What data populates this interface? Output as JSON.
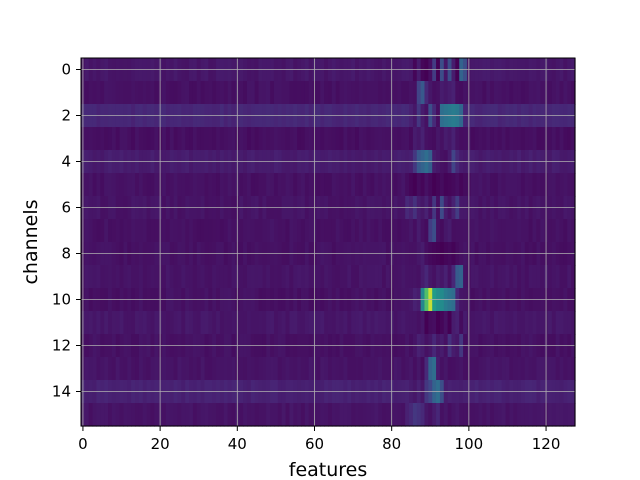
{
  "chart_data": {
    "type": "heatmap",
    "title": "",
    "xlabel": "features",
    "ylabel": "channels",
    "x_range": [
      -0.5,
      127.5
    ],
    "y_range": [
      -0.5,
      15.5
    ],
    "y_inverted": true,
    "x_ticks": [
      0,
      20,
      40,
      60,
      80,
      100,
      120
    ],
    "y_ticks": [
      0,
      2,
      4,
      6,
      8,
      10,
      12,
      14
    ],
    "grid": true,
    "colormap": "viridis",
    "n_rows": 16,
    "n_cols": 128,
    "background_level": 0.06,
    "row_levels": [
      0.08,
      0.06,
      0.14,
      0.05,
      0.1,
      0.06,
      0.07,
      0.06,
      0.06,
      0.07,
      0.06,
      0.08,
      0.06,
      0.07,
      0.12,
      0.07
    ],
    "hotspots": [
      {
        "row": 0,
        "cells": [
          [
            86,
            0.02
          ],
          [
            87,
            0.1
          ],
          [
            88,
            0.02
          ],
          [
            89,
            0.0
          ],
          [
            90,
            0.05
          ],
          [
            91,
            0.22
          ],
          [
            92,
            0.0
          ],
          [
            93,
            0.3
          ],
          [
            94,
            0.08
          ],
          [
            95,
            0.3
          ],
          [
            96,
            0.1
          ],
          [
            97,
            0.0
          ],
          [
            98,
            0.4
          ],
          [
            99,
            0.3
          ]
        ]
      },
      {
        "row": 1,
        "cells": [
          [
            87,
            0.25
          ],
          [
            88,
            0.35
          ],
          [
            89,
            0.15
          ],
          [
            90,
            0.08
          ],
          [
            91,
            0.05
          ],
          [
            92,
            0.06
          ],
          [
            93,
            0.1
          ],
          [
            94,
            0.08
          ],
          [
            95,
            0.1
          ],
          [
            96,
            0.12
          ]
        ]
      },
      {
        "row": 2,
        "cells": [
          [
            85,
            0.12
          ],
          [
            86,
            0.08
          ],
          [
            87,
            0.2
          ],
          [
            88,
            0.1
          ],
          [
            89,
            0.06
          ],
          [
            90,
            0.3
          ],
          [
            91,
            0.15
          ],
          [
            92,
            0.05
          ],
          [
            93,
            0.45
          ],
          [
            94,
            0.48
          ],
          [
            95,
            0.5
          ],
          [
            96,
            0.52
          ],
          [
            97,
            0.5
          ],
          [
            98,
            0.42
          ]
        ]
      },
      {
        "row": 3,
        "cells": [
          [
            86,
            0.1
          ],
          [
            87,
            0.08
          ],
          [
            88,
            0.12
          ],
          [
            89,
            0.06
          ],
          [
            90,
            0.05
          ],
          [
            91,
            0.04
          ],
          [
            92,
            0.08
          ],
          [
            93,
            0.06
          ],
          [
            94,
            0.1
          ],
          [
            95,
            0.08
          ],
          [
            96,
            0.12
          ]
        ]
      },
      {
        "row": 4,
        "cells": [
          [
            86,
            0.2
          ],
          [
            87,
            0.35
          ],
          [
            88,
            0.4
          ],
          [
            89,
            0.45
          ],
          [
            90,
            0.38
          ],
          [
            91,
            0.1
          ],
          [
            92,
            0.08
          ],
          [
            93,
            0.06
          ],
          [
            94,
            0.05
          ],
          [
            95,
            0.1
          ],
          [
            96,
            0.25
          ],
          [
            97,
            0.15
          ]
        ]
      },
      {
        "row": 5,
        "cells": [
          [
            85,
            0.02
          ],
          [
            86,
            0.0
          ],
          [
            87,
            0.04
          ],
          [
            88,
            0.02
          ],
          [
            89,
            0.06
          ],
          [
            90,
            0.03
          ],
          [
            91,
            0.0
          ],
          [
            92,
            0.02
          ],
          [
            93,
            0.04
          ],
          [
            94,
            0.01
          ],
          [
            95,
            0.02
          ],
          [
            96,
            0.03
          ],
          [
            97,
            0.05
          ],
          [
            98,
            0.02
          ],
          [
            99,
            0.04
          ]
        ]
      },
      {
        "row": 6,
        "cells": [
          [
            84,
            0.15
          ],
          [
            85,
            0.12
          ],
          [
            86,
            0.18
          ],
          [
            87,
            0.1
          ],
          [
            88,
            0.08
          ],
          [
            89,
            0.12
          ],
          [
            90,
            0.06
          ],
          [
            91,
            0.2
          ],
          [
            92,
            0.05
          ],
          [
            93,
            0.28
          ],
          [
            94,
            0.1
          ],
          [
            95,
            0.06
          ],
          [
            96,
            0.12
          ],
          [
            97,
            0.22
          ]
        ]
      },
      {
        "row": 7,
        "cells": [
          [
            85,
            0.08
          ],
          [
            86,
            0.05
          ],
          [
            87,
            0.1
          ],
          [
            88,
            0.06
          ],
          [
            89,
            0.04
          ],
          [
            90,
            0.22
          ],
          [
            91,
            0.3
          ],
          [
            92,
            0.06
          ],
          [
            93,
            0.04
          ],
          [
            94,
            0.08
          ],
          [
            95,
            0.1
          ]
        ]
      },
      {
        "row": 8,
        "cells": [
          [
            87,
            0.08
          ],
          [
            88,
            0.1
          ],
          [
            89,
            0.05
          ],
          [
            90,
            0.03
          ],
          [
            91,
            0.02
          ],
          [
            92,
            0.01
          ],
          [
            93,
            0.0
          ],
          [
            94,
            0.02
          ],
          [
            95,
            0.03
          ],
          [
            96,
            0.01
          ],
          [
            97,
            0.04
          ],
          [
            98,
            0.06
          ]
        ]
      },
      {
        "row": 9,
        "cells": [
          [
            87,
            0.06
          ],
          [
            88,
            0.1
          ],
          [
            89,
            0.14
          ],
          [
            90,
            0.08
          ],
          [
            91,
            0.06
          ],
          [
            92,
            0.1
          ],
          [
            93,
            0.08
          ],
          [
            94,
            0.12
          ],
          [
            95,
            0.06
          ],
          [
            96,
            0.14
          ],
          [
            97,
            0.36
          ],
          [
            98,
            0.4
          ]
        ]
      },
      {
        "row": 10,
        "cells": [
          [
            85,
            0.08
          ],
          [
            86,
            0.12
          ],
          [
            87,
            0.1
          ],
          [
            88,
            0.58
          ],
          [
            89,
            0.82
          ],
          [
            90,
            0.95
          ],
          [
            91,
            0.68
          ],
          [
            92,
            0.62
          ],
          [
            93,
            0.6
          ],
          [
            94,
            0.52
          ],
          [
            95,
            0.48
          ],
          [
            96,
            0.45
          ],
          [
            97,
            0.14
          ]
        ]
      },
      {
        "row": 11,
        "cells": [
          [
            87,
            0.06
          ],
          [
            88,
            0.08
          ],
          [
            89,
            0.0
          ],
          [
            90,
            0.04
          ],
          [
            91,
            0.05
          ],
          [
            92,
            0.0
          ],
          [
            93,
            0.02
          ],
          [
            94,
            0.06
          ],
          [
            95,
            0.0
          ],
          [
            96,
            0.1
          ],
          [
            97,
            0.12
          ],
          [
            98,
            0.04
          ]
        ]
      },
      {
        "row": 12,
        "cells": [
          [
            87,
            0.12
          ],
          [
            88,
            0.1
          ],
          [
            89,
            0.06
          ],
          [
            90,
            0.08
          ],
          [
            91,
            0.14
          ],
          [
            92,
            0.08
          ],
          [
            93,
            0.1
          ],
          [
            94,
            0.06
          ],
          [
            95,
            0.18
          ],
          [
            96,
            0.1
          ],
          [
            97,
            0.08
          ],
          [
            98,
            0.2
          ]
        ]
      },
      {
        "row": 13,
        "cells": [
          [
            86,
            0.05
          ],
          [
            87,
            0.08
          ],
          [
            88,
            0.04
          ],
          [
            89,
            0.15
          ],
          [
            90,
            0.4
          ],
          [
            91,
            0.45
          ],
          [
            92,
            0.1
          ],
          [
            93,
            0.06
          ],
          [
            94,
            0.08
          ],
          [
            95,
            0.05
          ]
        ]
      },
      {
        "row": 14,
        "cells": [
          [
            85,
            0.1
          ],
          [
            86,
            0.08
          ],
          [
            87,
            0.12
          ],
          [
            88,
            0.08
          ],
          [
            89,
            0.2
          ],
          [
            90,
            0.26
          ],
          [
            91,
            0.4
          ],
          [
            92,
            0.45
          ],
          [
            93,
            0.3
          ],
          [
            94,
            0.1
          ],
          [
            95,
            0.12
          ]
        ]
      },
      {
        "row": 15,
        "cells": [
          [
            84,
            0.12
          ],
          [
            85,
            0.15
          ],
          [
            86,
            0.2
          ],
          [
            87,
            0.18
          ],
          [
            88,
            0.15
          ],
          [
            89,
            0.08
          ],
          [
            90,
            0.06
          ],
          [
            91,
            0.1
          ],
          [
            92,
            0.14
          ],
          [
            93,
            0.06
          ],
          [
            94,
            0.08
          ],
          [
            95,
            0.05
          ]
        ]
      }
    ],
    "colors": {
      "background": "#ffffff",
      "grid": "#b0b0b0",
      "axis": "#000000"
    }
  }
}
